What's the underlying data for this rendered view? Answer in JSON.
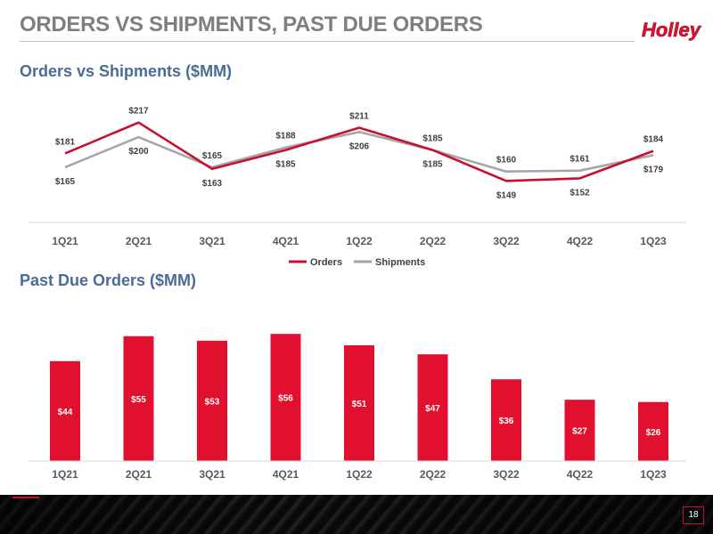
{
  "slide": {
    "title": "ORDERS VS SHIPMENTS, PAST DUE ORDERS",
    "logo_text": "Holley",
    "page_number": "18"
  },
  "colors": {
    "orders": "#c8102e",
    "shipments": "#a6a6a6",
    "bars": "#e0102e",
    "section_title": "#4a6c96"
  },
  "chart_data": [
    {
      "type": "line",
      "title": "Orders vs Shipments ($MM)",
      "categories": [
        "1Q21",
        "2Q21",
        "3Q21",
        "4Q21",
        "1Q22",
        "2Q22",
        "3Q22",
        "4Q22",
        "1Q23"
      ],
      "series": [
        {
          "name": "Orders",
          "values": [
            181,
            217,
            163,
            185,
            211,
            185,
            149,
            152,
            184
          ],
          "labels": [
            "$181",
            "$217",
            "$163",
            "$185",
            "$211",
            "$185",
            "$149",
            "$152",
            "$184"
          ]
        },
        {
          "name": "Shipments",
          "values": [
            165,
            200,
            165,
            188,
            206,
            185,
            160,
            161,
            179
          ],
          "labels": [
            "$165",
            "$200",
            "$165",
            "$188",
            "$206",
            "$185",
            "$160",
            "$161",
            "$179"
          ]
        }
      ],
      "ylim": [
        140,
        225
      ],
      "legend": "bottom"
    },
    {
      "type": "bar",
      "title": "Past Due Orders ($MM)",
      "categories": [
        "1Q21",
        "2Q21",
        "3Q21",
        "4Q21",
        "1Q22",
        "2Q22",
        "3Q22",
        "4Q22",
        "1Q23"
      ],
      "values": [
        44,
        55,
        53,
        56,
        51,
        47,
        36,
        27,
        26
      ],
      "labels": [
        "$44",
        "$55",
        "$53",
        "$56",
        "$51",
        "$47",
        "$36",
        "$27",
        "$26"
      ],
      "ylim": [
        0,
        60
      ]
    }
  ]
}
